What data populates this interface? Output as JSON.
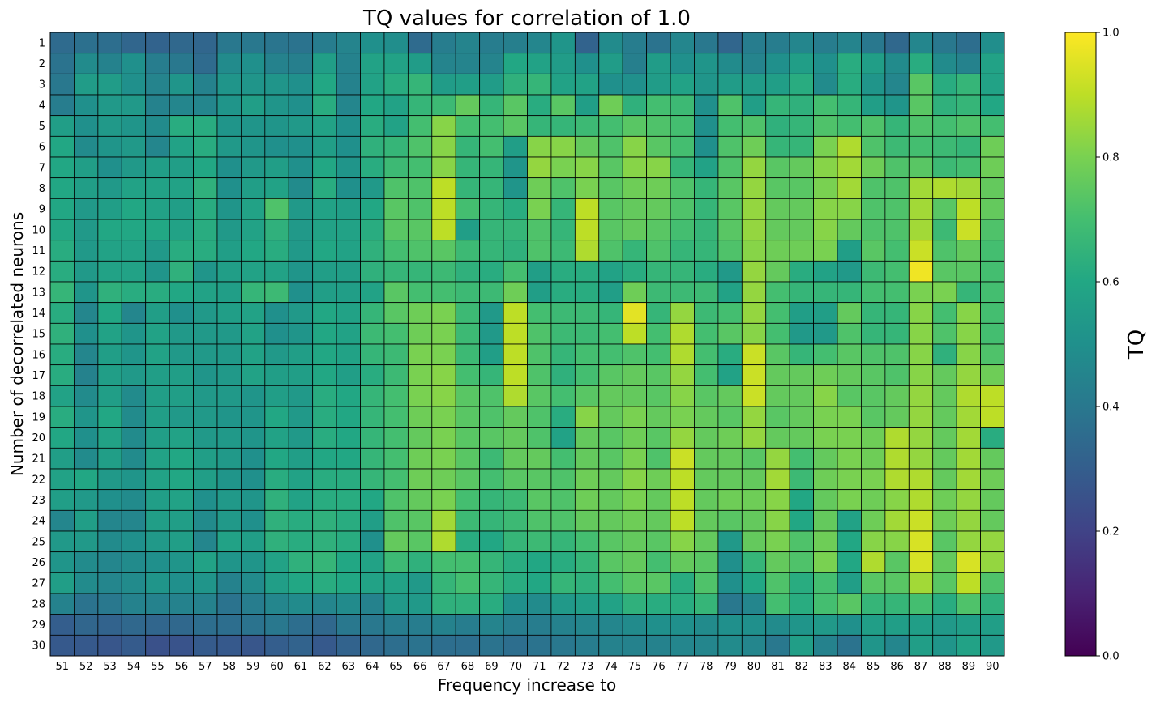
{
  "chart_data": {
    "type": "heatmap",
    "title": "TQ values for correlation of 1.0",
    "xlabel": "Frequency increase to",
    "ylabel": "Number of decorrelated neurons",
    "colorbar_label": "TQ",
    "colormap": "viridis",
    "clim": [
      0,
      1
    ],
    "colorbar_ticks": [
      "0.0",
      "0.2",
      "0.4",
      "0.6",
      "0.8",
      "1.0"
    ],
    "x": [
      51,
      52,
      53,
      54,
      55,
      56,
      57,
      58,
      59,
      60,
      61,
      62,
      63,
      64,
      65,
      66,
      67,
      68,
      69,
      70,
      71,
      72,
      73,
      74,
      75,
      76,
      77,
      78,
      79,
      80,
      81,
      82,
      83,
      84,
      85,
      86,
      87,
      88,
      89,
      90
    ],
    "y": [
      1,
      2,
      3,
      4,
      5,
      6,
      7,
      8,
      9,
      10,
      11,
      12,
      13,
      14,
      15,
      16,
      17,
      18,
      19,
      20,
      21,
      22,
      23,
      24,
      25,
      26,
      27,
      28,
      29,
      30
    ],
    "values": [
      [
        0.35,
        0.37,
        0.36,
        0.33,
        0.32,
        0.34,
        0.33,
        0.4,
        0.4,
        0.39,
        0.38,
        0.42,
        0.45,
        0.5,
        0.49,
        0.35,
        0.42,
        0.45,
        0.42,
        0.43,
        0.46,
        0.52,
        0.32,
        0.48,
        0.42,
        0.38,
        0.46,
        0.4,
        0.33,
        0.42,
        0.42,
        0.46,
        0.42,
        0.45,
        0.4,
        0.34,
        0.46,
        0.4,
        0.36,
        0.49
      ],
      [
        0.38,
        0.48,
        0.44,
        0.5,
        0.42,
        0.4,
        0.35,
        0.48,
        0.5,
        0.44,
        0.43,
        0.56,
        0.44,
        0.58,
        0.58,
        0.55,
        0.45,
        0.45,
        0.45,
        0.6,
        0.58,
        0.55,
        0.5,
        0.55,
        0.43,
        0.55,
        0.5,
        0.52,
        0.48,
        0.45,
        0.5,
        0.56,
        0.5,
        0.62,
        0.56,
        0.48,
        0.62,
        0.48,
        0.44,
        0.58
      ],
      [
        0.4,
        0.55,
        0.55,
        0.5,
        0.45,
        0.52,
        0.44,
        0.52,
        0.52,
        0.52,
        0.5,
        0.6,
        0.44,
        0.58,
        0.62,
        0.66,
        0.55,
        0.56,
        0.55,
        0.64,
        0.66,
        0.58,
        0.58,
        0.5,
        0.5,
        0.55,
        0.58,
        0.52,
        0.55,
        0.55,
        0.56,
        0.62,
        0.48,
        0.62,
        0.52,
        0.46,
        0.74,
        0.62,
        0.66,
        0.58
      ],
      [
        0.42,
        0.5,
        0.54,
        0.54,
        0.44,
        0.46,
        0.46,
        0.52,
        0.56,
        0.52,
        0.5,
        0.62,
        0.46,
        0.6,
        0.58,
        0.66,
        0.68,
        0.76,
        0.66,
        0.74,
        0.62,
        0.74,
        0.56,
        0.78,
        0.64,
        0.7,
        0.68,
        0.5,
        0.72,
        0.56,
        0.66,
        0.64,
        0.7,
        0.66,
        0.56,
        0.52,
        0.74,
        0.64,
        0.66,
        0.6
      ],
      [
        0.56,
        0.5,
        0.54,
        0.52,
        0.48,
        0.62,
        0.62,
        0.52,
        0.52,
        0.52,
        0.54,
        0.58,
        0.5,
        0.62,
        0.58,
        0.7,
        0.82,
        0.7,
        0.7,
        0.74,
        0.66,
        0.66,
        0.68,
        0.7,
        0.74,
        0.72,
        0.7,
        0.5,
        0.7,
        0.72,
        0.64,
        0.66,
        0.72,
        0.7,
        0.72,
        0.66,
        0.72,
        0.7,
        0.72,
        0.7
      ],
      [
        0.6,
        0.48,
        0.52,
        0.54,
        0.46,
        0.58,
        0.62,
        0.54,
        0.52,
        0.5,
        0.5,
        0.56,
        0.5,
        0.64,
        0.66,
        0.72,
        0.82,
        0.66,
        0.7,
        0.56,
        0.82,
        0.82,
        0.76,
        0.72,
        0.82,
        0.74,
        0.7,
        0.5,
        0.72,
        0.78,
        0.66,
        0.66,
        0.8,
        0.88,
        0.72,
        0.68,
        0.7,
        0.68,
        0.66,
        0.78
      ],
      [
        0.6,
        0.56,
        0.5,
        0.54,
        0.56,
        0.56,
        0.6,
        0.5,
        0.54,
        0.56,
        0.5,
        0.6,
        0.52,
        0.62,
        0.68,
        0.7,
        0.82,
        0.66,
        0.66,
        0.52,
        0.84,
        0.8,
        0.82,
        0.74,
        0.82,
        0.82,
        0.66,
        0.58,
        0.72,
        0.84,
        0.74,
        0.76,
        0.82,
        0.86,
        0.78,
        0.72,
        0.74,
        0.68,
        0.7,
        0.78
      ],
      [
        0.6,
        0.56,
        0.54,
        0.58,
        0.58,
        0.58,
        0.64,
        0.5,
        0.56,
        0.58,
        0.48,
        0.62,
        0.5,
        0.54,
        0.72,
        0.72,
        0.9,
        0.66,
        0.66,
        0.52,
        0.78,
        0.72,
        0.8,
        0.74,
        0.78,
        0.78,
        0.72,
        0.66,
        0.74,
        0.84,
        0.74,
        0.74,
        0.8,
        0.86,
        0.72,
        0.72,
        0.86,
        0.88,
        0.86,
        0.76
      ],
      [
        0.6,
        0.54,
        0.56,
        0.6,
        0.58,
        0.56,
        0.62,
        0.52,
        0.58,
        0.72,
        0.54,
        0.58,
        0.56,
        0.6,
        0.74,
        0.72,
        0.9,
        0.7,
        0.66,
        0.62,
        0.8,
        0.66,
        0.9,
        0.74,
        0.76,
        0.76,
        0.72,
        0.66,
        0.74,
        0.84,
        0.76,
        0.76,
        0.82,
        0.82,
        0.72,
        0.72,
        0.86,
        0.74,
        0.9,
        0.76
      ],
      [
        0.6,
        0.54,
        0.6,
        0.6,
        0.6,
        0.58,
        0.62,
        0.54,
        0.58,
        0.64,
        0.54,
        0.58,
        0.58,
        0.62,
        0.74,
        0.74,
        0.9,
        0.56,
        0.66,
        0.66,
        0.72,
        0.66,
        0.9,
        0.74,
        0.76,
        0.74,
        0.7,
        0.66,
        0.74,
        0.84,
        0.76,
        0.76,
        0.82,
        0.76,
        0.72,
        0.72,
        0.86,
        0.68,
        0.92,
        0.72
      ],
      [
        0.62,
        0.54,
        0.58,
        0.58,
        0.54,
        0.62,
        0.62,
        0.56,
        0.6,
        0.62,
        0.54,
        0.6,
        0.58,
        0.64,
        0.7,
        0.72,
        0.74,
        0.68,
        0.66,
        0.64,
        0.72,
        0.68,
        0.88,
        0.72,
        0.66,
        0.72,
        0.66,
        0.66,
        0.72,
        0.82,
        0.78,
        0.78,
        0.8,
        0.56,
        0.74,
        0.7,
        0.92,
        0.72,
        0.76,
        0.7
      ],
      [
        0.62,
        0.54,
        0.58,
        0.58,
        0.52,
        0.64,
        0.52,
        0.56,
        0.58,
        0.58,
        0.52,
        0.56,
        0.56,
        0.64,
        0.66,
        0.66,
        0.68,
        0.64,
        0.62,
        0.7,
        0.56,
        0.62,
        0.62,
        0.58,
        0.62,
        0.66,
        0.66,
        0.62,
        0.54,
        0.84,
        0.76,
        0.62,
        0.58,
        0.54,
        0.68,
        0.7,
        0.98,
        0.74,
        0.74,
        0.7
      ],
      [
        0.66,
        0.52,
        0.64,
        0.62,
        0.62,
        0.6,
        0.58,
        0.56,
        0.66,
        0.68,
        0.5,
        0.56,
        0.56,
        0.58,
        0.74,
        0.7,
        0.7,
        0.68,
        0.68,
        0.78,
        0.56,
        0.62,
        0.62,
        0.56,
        0.78,
        0.68,
        0.68,
        0.68,
        0.58,
        0.84,
        0.7,
        0.66,
        0.66,
        0.66,
        0.7,
        0.7,
        0.8,
        0.8,
        0.66,
        0.7
      ],
      [
        0.62,
        0.46,
        0.6,
        0.46,
        0.56,
        0.5,
        0.54,
        0.56,
        0.58,
        0.5,
        0.54,
        0.6,
        0.58,
        0.66,
        0.74,
        0.78,
        0.8,
        0.68,
        0.54,
        0.9,
        0.7,
        0.68,
        0.68,
        0.66,
        0.96,
        0.66,
        0.84,
        0.68,
        0.7,
        0.84,
        0.7,
        0.56,
        0.56,
        0.76,
        0.66,
        0.66,
        0.82,
        0.7,
        0.82,
        0.7
      ],
      [
        0.64,
        0.5,
        0.58,
        0.52,
        0.58,
        0.54,
        0.54,
        0.54,
        0.58,
        0.5,
        0.52,
        0.6,
        0.58,
        0.68,
        0.7,
        0.78,
        0.8,
        0.68,
        0.54,
        0.9,
        0.72,
        0.68,
        0.68,
        0.7,
        0.9,
        0.7,
        0.88,
        0.7,
        0.74,
        0.82,
        0.7,
        0.54,
        0.54,
        0.72,
        0.66,
        0.66,
        0.82,
        0.72,
        0.82,
        0.7
      ],
      [
        0.62,
        0.46,
        0.56,
        0.52,
        0.58,
        0.54,
        0.54,
        0.54,
        0.58,
        0.54,
        0.56,
        0.6,
        0.58,
        0.66,
        0.68,
        0.8,
        0.8,
        0.68,
        0.56,
        0.9,
        0.72,
        0.66,
        0.7,
        0.7,
        0.72,
        0.7,
        0.88,
        0.7,
        0.62,
        0.92,
        0.74,
        0.66,
        0.7,
        0.74,
        0.72,
        0.72,
        0.82,
        0.64,
        0.82,
        0.72
      ],
      [
        0.62,
        0.44,
        0.56,
        0.54,
        0.56,
        0.56,
        0.52,
        0.54,
        0.58,
        0.56,
        0.56,
        0.6,
        0.56,
        0.62,
        0.68,
        0.8,
        0.82,
        0.7,
        0.66,
        0.9,
        0.72,
        0.64,
        0.7,
        0.74,
        0.76,
        0.74,
        0.84,
        0.7,
        0.58,
        0.92,
        0.76,
        0.76,
        0.78,
        0.76,
        0.74,
        0.72,
        0.82,
        0.76,
        0.84,
        0.78
      ],
      [
        0.58,
        0.48,
        0.56,
        0.48,
        0.56,
        0.56,
        0.54,
        0.54,
        0.52,
        0.56,
        0.54,
        0.62,
        0.6,
        0.66,
        0.7,
        0.8,
        0.82,
        0.74,
        0.72,
        0.88,
        0.74,
        0.7,
        0.74,
        0.76,
        0.76,
        0.74,
        0.82,
        0.74,
        0.76,
        0.92,
        0.76,
        0.76,
        0.82,
        0.74,
        0.74,
        0.76,
        0.84,
        0.76,
        0.88,
        0.9
      ],
      [
        0.62,
        0.52,
        0.6,
        0.48,
        0.56,
        0.54,
        0.54,
        0.52,
        0.52,
        0.6,
        0.54,
        0.62,
        0.6,
        0.66,
        0.7,
        0.78,
        0.8,
        0.74,
        0.72,
        0.76,
        0.72,
        0.62,
        0.82,
        0.76,
        0.8,
        0.76,
        0.8,
        0.76,
        0.74,
        0.84,
        0.74,
        0.76,
        0.8,
        0.8,
        0.74,
        0.76,
        0.84,
        0.76,
        0.86,
        0.9
      ],
      [
        0.6,
        0.5,
        0.58,
        0.48,
        0.56,
        0.58,
        0.54,
        0.54,
        0.52,
        0.58,
        0.54,
        0.62,
        0.6,
        0.66,
        0.7,
        0.76,
        0.8,
        0.74,
        0.74,
        0.76,
        0.72,
        0.58,
        0.76,
        0.74,
        0.78,
        0.74,
        0.84,
        0.76,
        0.78,
        0.84,
        0.76,
        0.76,
        0.8,
        0.8,
        0.78,
        0.88,
        0.84,
        0.76,
        0.86,
        0.62
      ],
      [
        0.56,
        0.48,
        0.56,
        0.48,
        0.58,
        0.6,
        0.56,
        0.54,
        0.5,
        0.6,
        0.56,
        0.6,
        0.6,
        0.66,
        0.7,
        0.78,
        0.8,
        0.74,
        0.68,
        0.76,
        0.76,
        0.7,
        0.76,
        0.74,
        0.8,
        0.72,
        0.92,
        0.76,
        0.76,
        0.74,
        0.84,
        0.7,
        0.76,
        0.8,
        0.78,
        0.88,
        0.84,
        0.76,
        0.86,
        0.76
      ],
      [
        0.58,
        0.6,
        0.54,
        0.52,
        0.58,
        0.6,
        0.56,
        0.52,
        0.5,
        0.62,
        0.58,
        0.62,
        0.62,
        0.66,
        0.7,
        0.78,
        0.78,
        0.74,
        0.7,
        0.74,
        0.74,
        0.72,
        0.78,
        0.76,
        0.82,
        0.78,
        0.9,
        0.76,
        0.76,
        0.76,
        0.86,
        0.68,
        0.78,
        0.8,
        0.8,
        0.88,
        0.88,
        0.76,
        0.86,
        0.78
      ],
      [
        0.56,
        0.54,
        0.5,
        0.48,
        0.56,
        0.58,
        0.5,
        0.54,
        0.52,
        0.64,
        0.58,
        0.62,
        0.62,
        0.6,
        0.72,
        0.76,
        0.8,
        0.7,
        0.66,
        0.68,
        0.74,
        0.72,
        0.78,
        0.76,
        0.8,
        0.76,
        0.9,
        0.76,
        0.78,
        0.78,
        0.82,
        0.6,
        0.76,
        0.8,
        0.78,
        0.82,
        0.88,
        0.78,
        0.84,
        0.76
      ],
      [
        0.46,
        0.56,
        0.46,
        0.46,
        0.56,
        0.56,
        0.48,
        0.54,
        0.5,
        0.64,
        0.62,
        0.64,
        0.62,
        0.56,
        0.72,
        0.74,
        0.86,
        0.68,
        0.66,
        0.68,
        0.72,
        0.72,
        0.76,
        0.76,
        0.78,
        0.76,
        0.9,
        0.76,
        0.74,
        0.76,
        0.82,
        0.6,
        0.76,
        0.58,
        0.78,
        0.86,
        0.92,
        0.78,
        0.84,
        0.76
      ],
      [
        0.54,
        0.54,
        0.48,
        0.5,
        0.54,
        0.56,
        0.46,
        0.58,
        0.56,
        0.64,
        0.62,
        0.64,
        0.62,
        0.5,
        0.76,
        0.74,
        0.88,
        0.62,
        0.6,
        0.66,
        0.68,
        0.66,
        0.7,
        0.74,
        0.76,
        0.74,
        0.82,
        0.76,
        0.54,
        0.76,
        0.8,
        0.72,
        0.78,
        0.6,
        0.82,
        0.82,
        0.94,
        0.74,
        0.84,
        0.84
      ],
      [
        0.52,
        0.48,
        0.46,
        0.48,
        0.5,
        0.52,
        0.58,
        0.52,
        0.52,
        0.58,
        0.64,
        0.66,
        0.6,
        0.58,
        0.68,
        0.64,
        0.7,
        0.7,
        0.66,
        0.62,
        0.6,
        0.62,
        0.66,
        0.74,
        0.76,
        0.7,
        0.76,
        0.74,
        0.5,
        0.66,
        0.76,
        0.72,
        0.8,
        0.6,
        0.88,
        0.74,
        0.94,
        0.76,
        0.94,
        0.84
      ],
      [
        0.56,
        0.48,
        0.46,
        0.48,
        0.52,
        0.5,
        0.52,
        0.44,
        0.48,
        0.56,
        0.6,
        0.62,
        0.6,
        0.58,
        0.58,
        0.54,
        0.66,
        0.7,
        0.66,
        0.62,
        0.6,
        0.66,
        0.64,
        0.7,
        0.74,
        0.74,
        0.62,
        0.72,
        0.5,
        0.6,
        0.72,
        0.62,
        0.7,
        0.56,
        0.74,
        0.74,
        0.86,
        0.74,
        0.9,
        0.72
      ],
      [
        0.44,
        0.38,
        0.4,
        0.44,
        0.44,
        0.44,
        0.44,
        0.38,
        0.42,
        0.46,
        0.48,
        0.46,
        0.48,
        0.44,
        0.54,
        0.54,
        0.64,
        0.64,
        0.62,
        0.5,
        0.48,
        0.54,
        0.56,
        0.58,
        0.64,
        0.62,
        0.62,
        0.66,
        0.4,
        0.46,
        0.7,
        0.62,
        0.7,
        0.74,
        0.66,
        0.66,
        0.7,
        0.62,
        0.72,
        0.64
      ],
      [
        0.3,
        0.33,
        0.32,
        0.34,
        0.33,
        0.34,
        0.36,
        0.36,
        0.38,
        0.4,
        0.36,
        0.34,
        0.4,
        0.4,
        0.42,
        0.42,
        0.44,
        0.42,
        0.45,
        0.42,
        0.42,
        0.44,
        0.46,
        0.46,
        0.48,
        0.5,
        0.5,
        0.48,
        0.5,
        0.5,
        0.48,
        0.52,
        0.54,
        0.5,
        0.56,
        0.56,
        0.56,
        0.54,
        0.56,
        0.56
      ],
      [
        0.28,
        0.28,
        0.27,
        0.29,
        0.25,
        0.26,
        0.29,
        0.28,
        0.27,
        0.3,
        0.32,
        0.28,
        0.32,
        0.34,
        0.36,
        0.38,
        0.36,
        0.36,
        0.38,
        0.36,
        0.38,
        0.4,
        0.42,
        0.44,
        0.44,
        0.44,
        0.46,
        0.46,
        0.48,
        0.46,
        0.4,
        0.56,
        0.44,
        0.38,
        0.52,
        0.46,
        0.56,
        0.52,
        0.58,
        0.54
      ]
    ]
  }
}
